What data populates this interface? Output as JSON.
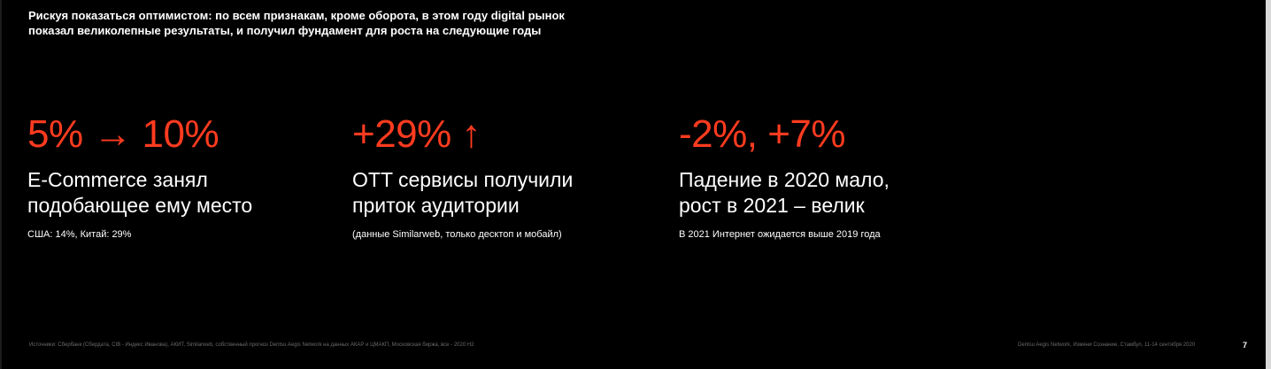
{
  "slide": {
    "intro": "Рискуя показаться оптимистом: по всем признакам, кроме оборота, в этом году digital рынок показал великолепные результаты, и получил фундамент для роста на следующие годы",
    "stats": [
      {
        "value": "5% → 10%",
        "title": "E-Commerce занял\nподобающее ему место",
        "note": "США: 14%, Китай: 29%"
      },
      {
        "value": "+29% ↑",
        "title": "OTT сервисы получили\nприток аудитории",
        "note": "(данные Similarweb, только десктоп и мобайл)"
      },
      {
        "value": "-2%, +7%",
        "title": "Падение в 2020 мало,\nрост в 2021 – велик",
        "note": "В 2021 Интернет ожидается выше 2019 года"
      }
    ],
    "footer": {
      "sources": "Источники: Сбербанк (Сбердата, CIB - Индекс Иванова), АКИТ, Similarweb, собственный прогноз Dentsu Aegis Network на данных АКАР и ЦМАКП, Московская биржа, все - 2020 Н2",
      "event": "Dentsu Aegis Network, Измени Сознание, Стамбул, 11-14 сентября 2020",
      "page_number": "7"
    }
  },
  "colors": {
    "background": "#000000",
    "accent": "#ff3b1f",
    "text": "#ffffff",
    "muted": "#6a6a6a"
  }
}
